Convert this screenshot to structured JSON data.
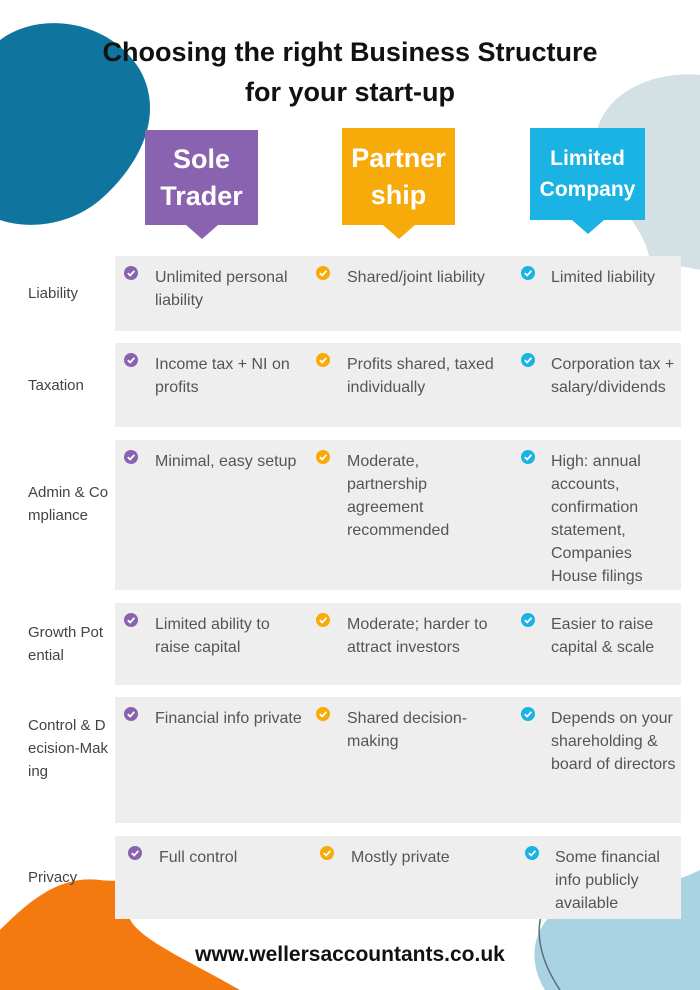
{
  "header": {
    "title": [
      "Choosing the right Business Structure",
      "for your start-up"
    ]
  },
  "columns": [
    {
      "name": "Sole Trader",
      "color": "#8a63b0"
    },
    {
      "name": "Partnership",
      "color": "#f7ab0a"
    },
    {
      "name": "Limited Company",
      "color": "#1bb3e3"
    }
  ],
  "rows": [
    {
      "label": "Liability",
      "cells": [
        "Unlimited personal liability",
        "Shared/joint liability",
        "Limited liability"
      ]
    },
    {
      "label": "Taxation",
      "cells": [
        "Income tax + NI on profits",
        "Profits shared, taxed individually",
        "Corporation tax + salary/dividends"
      ]
    },
    {
      "label": "Admin & Compliance",
      "cells": [
        "Minimal, easy setup",
        "Moderate, partnership agreement recommended",
        "High: annual accounts, confirmation statement, Companies House filings"
      ]
    },
    {
      "label": "Growth Potential",
      "cells": [
        "Limited ability to raise capital",
        "Moderate; harder to attract investors",
        "Easier to raise capital & scale"
      ]
    },
    {
      "label": "Control & Decision-Making",
      "cells": [
        "Financial info private",
        "Shared decision-making",
        "Depends on your shareholding & board of directors"
      ]
    },
    {
      "label": "Privacy",
      "cells": [
        "Full control",
        "Mostly private",
        "Some financial info publicly available"
      ]
    }
  ],
  "footer": {
    "url": "www.wellersaccountants.co.uk"
  }
}
